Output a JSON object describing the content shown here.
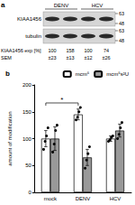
{
  "panel_a": {
    "label": "a",
    "groups": [
      "DENV",
      "HCV"
    ],
    "blots": [
      {
        "name": "KIAA1456",
        "markers": [
          63,
          48
        ]
      },
      {
        "name": "tubulin",
        "markers": [
          63,
          48
        ]
      }
    ],
    "rows": [
      {
        "label": "KIAA1456 exp [%]",
        "values": [
          100,
          158,
          100,
          74
        ]
      },
      {
        "label": "SEM",
        "values": [
          "±23",
          "±13",
          "±12",
          "±26"
        ]
      }
    ]
  },
  "chart_data": {
    "type": "bar",
    "title": "b",
    "y_label": "amount of modification",
    "categories": [
      "mock",
      "DENV",
      "HCV"
    ],
    "series": [
      {
        "name": "mcm⁵",
        "color": "#ffffff",
        "values": [
          100,
          145,
          100
        ],
        "errors": [
          15,
          10,
          5
        ],
        "points": [
          [
            80,
            95,
            105,
            120
          ],
          [
            135,
            140,
            150,
            158
          ],
          [
            95,
            98,
            102,
            105
          ]
        ]
      },
      {
        "name": "mcm⁵s²U",
        "color": "#999999",
        "values": [
          100,
          65,
          115
        ],
        "errors": [
          22,
          15,
          12
        ],
        "points": [
          [
            75,
            90,
            115,
            125
          ],
          [
            45,
            60,
            72,
            85
          ],
          [
            100,
            108,
            120,
            130
          ]
        ]
      }
    ],
    "ylim": [
      0,
      200
    ],
    "yticks": [
      0,
      50,
      100,
      150,
      200
    ],
    "legend": "top",
    "annotations": [
      {
        "text": "*",
        "from": "mock",
        "to": "DENV",
        "series": "mcm⁵"
      }
    ]
  }
}
